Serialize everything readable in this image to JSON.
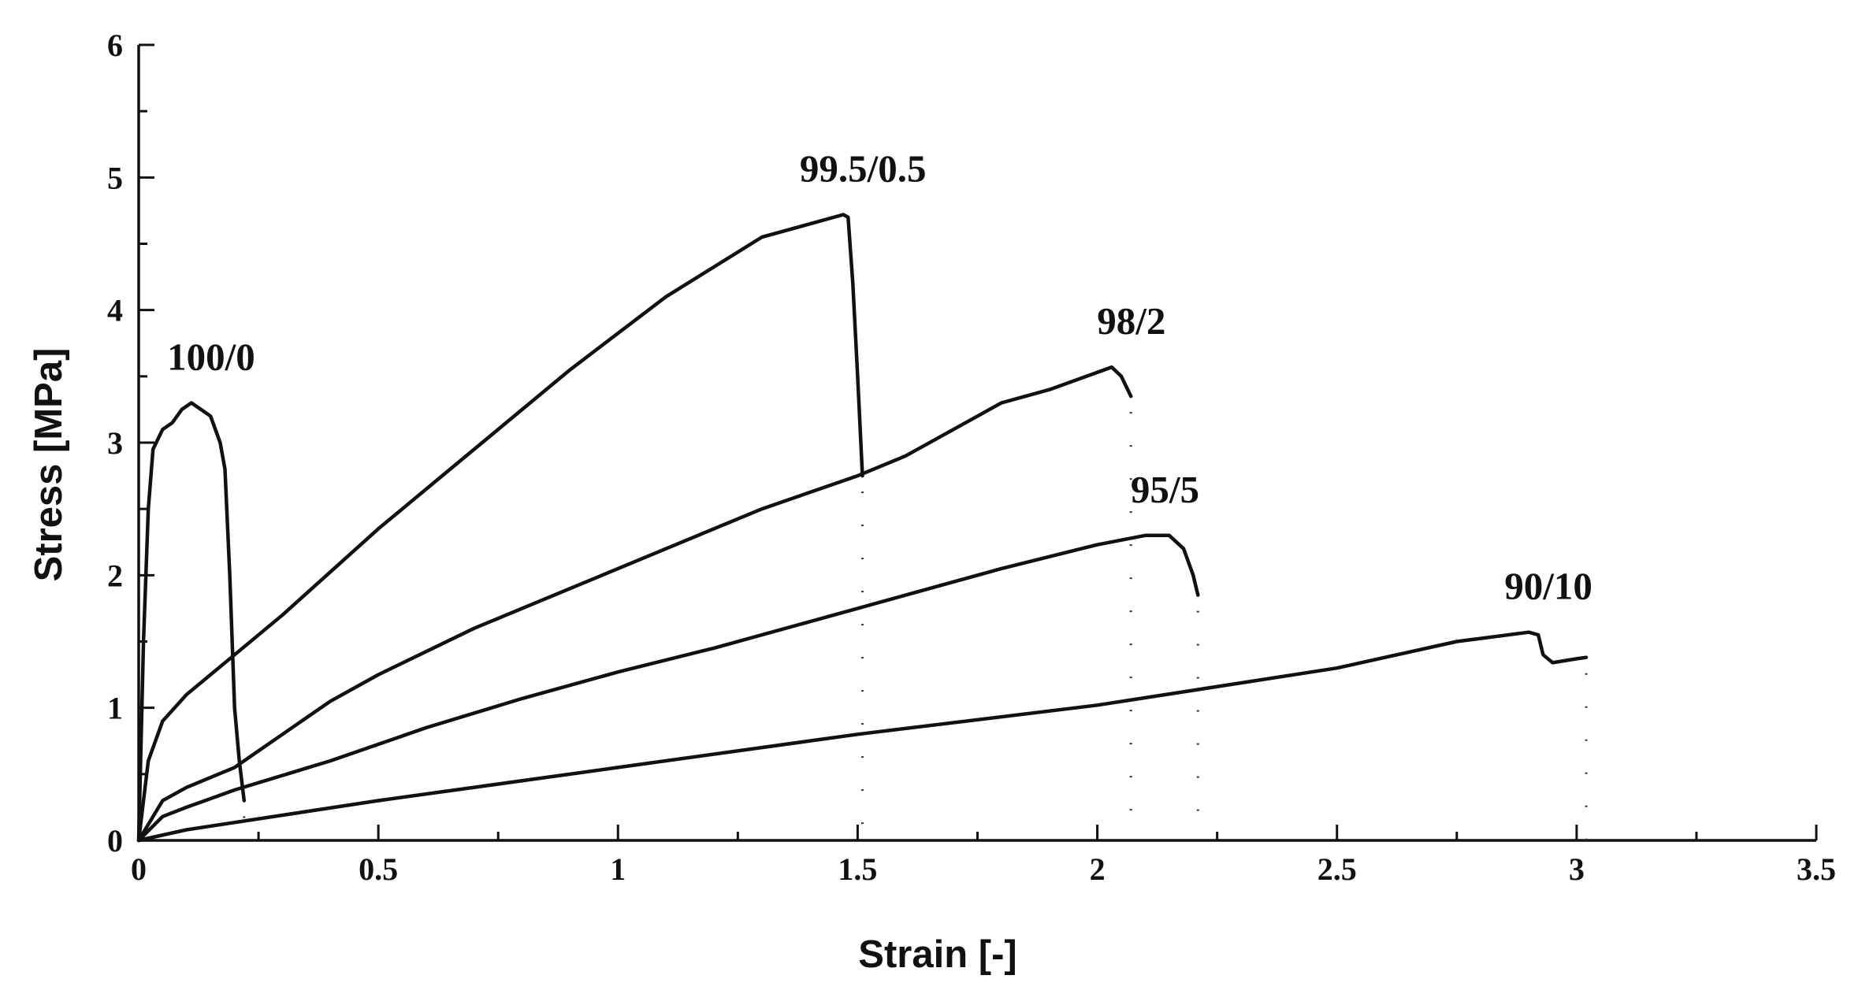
{
  "chart_data": {
    "type": "line",
    "xlabel": "Strain [-]",
    "ylabel": "Stress [MPa]",
    "xlim": [
      0,
      3.5
    ],
    "ylim": [
      0,
      6
    ],
    "xticks": [
      "0",
      "0.5",
      "1",
      "1.5",
      "2",
      "2.5",
      "3",
      "3.5"
    ],
    "yticks": [
      "0",
      "1",
      "2",
      "3",
      "4",
      "5",
      "6"
    ],
    "grid": false,
    "legend": "none",
    "series": [
      {
        "name": "100/0",
        "x": [
          0,
          0.01,
          0.02,
          0.03,
          0.05,
          0.07,
          0.09,
          0.11,
          0.13,
          0.15,
          0.16,
          0.17,
          0.18,
          0.19,
          0.2,
          0.21,
          0.22
        ],
        "y": [
          0,
          1.5,
          2.5,
          2.95,
          3.1,
          3.15,
          3.25,
          3.3,
          3.25,
          3.2,
          3.1,
          3.0,
          2.8,
          2.0,
          1.0,
          0.6,
          0.3
        ],
        "failure_strain": 0.22
      },
      {
        "name": "99.5/0.5",
        "x": [
          0,
          0.02,
          0.05,
          0.1,
          0.2,
          0.3,
          0.5,
          0.7,
          0.9,
          1.1,
          1.3,
          1.4,
          1.47,
          1.48,
          1.49,
          1.5,
          1.51
        ],
        "y": [
          0,
          0.6,
          0.9,
          1.1,
          1.4,
          1.7,
          2.35,
          2.95,
          3.55,
          4.1,
          4.55,
          4.65,
          4.72,
          4.7,
          4.2,
          3.5,
          2.75
        ],
        "failure_strain": 1.51
      },
      {
        "name": "98/2",
        "x": [
          0,
          0.05,
          0.1,
          0.2,
          0.3,
          0.4,
          0.5,
          0.7,
          0.9,
          1.1,
          1.3,
          1.5,
          1.6,
          1.7,
          1.8,
          1.9,
          2.0,
          2.03,
          2.05,
          2.07
        ],
        "y": [
          0,
          0.3,
          0.4,
          0.55,
          0.8,
          1.05,
          1.25,
          1.6,
          1.9,
          2.2,
          2.5,
          2.75,
          2.9,
          3.1,
          3.3,
          3.4,
          3.53,
          3.57,
          3.5,
          3.35
        ],
        "failure_strain": 2.07
      },
      {
        "name": "95/5",
        "x": [
          0,
          0.05,
          0.1,
          0.2,
          0.4,
          0.6,
          0.8,
          1.0,
          1.2,
          1.4,
          1.6,
          1.8,
          2.0,
          2.1,
          2.15,
          2.18,
          2.2,
          2.21
        ],
        "y": [
          0,
          0.18,
          0.25,
          0.38,
          0.6,
          0.85,
          1.07,
          1.27,
          1.45,
          1.65,
          1.85,
          2.05,
          2.23,
          2.3,
          2.3,
          2.2,
          2.0,
          1.85
        ],
        "failure_strain": 2.21
      },
      {
        "name": "90/10",
        "x": [
          0,
          0.1,
          0.5,
          1.0,
          1.5,
          2.0,
          2.5,
          2.75,
          2.9,
          2.92,
          2.93,
          2.95,
          3.0,
          3.02
        ],
        "y": [
          0,
          0.08,
          0.3,
          0.55,
          0.8,
          1.02,
          1.3,
          1.5,
          1.57,
          1.55,
          1.4,
          1.34,
          1.37,
          1.38
        ],
        "failure_strain": 3.02
      }
    ]
  }
}
